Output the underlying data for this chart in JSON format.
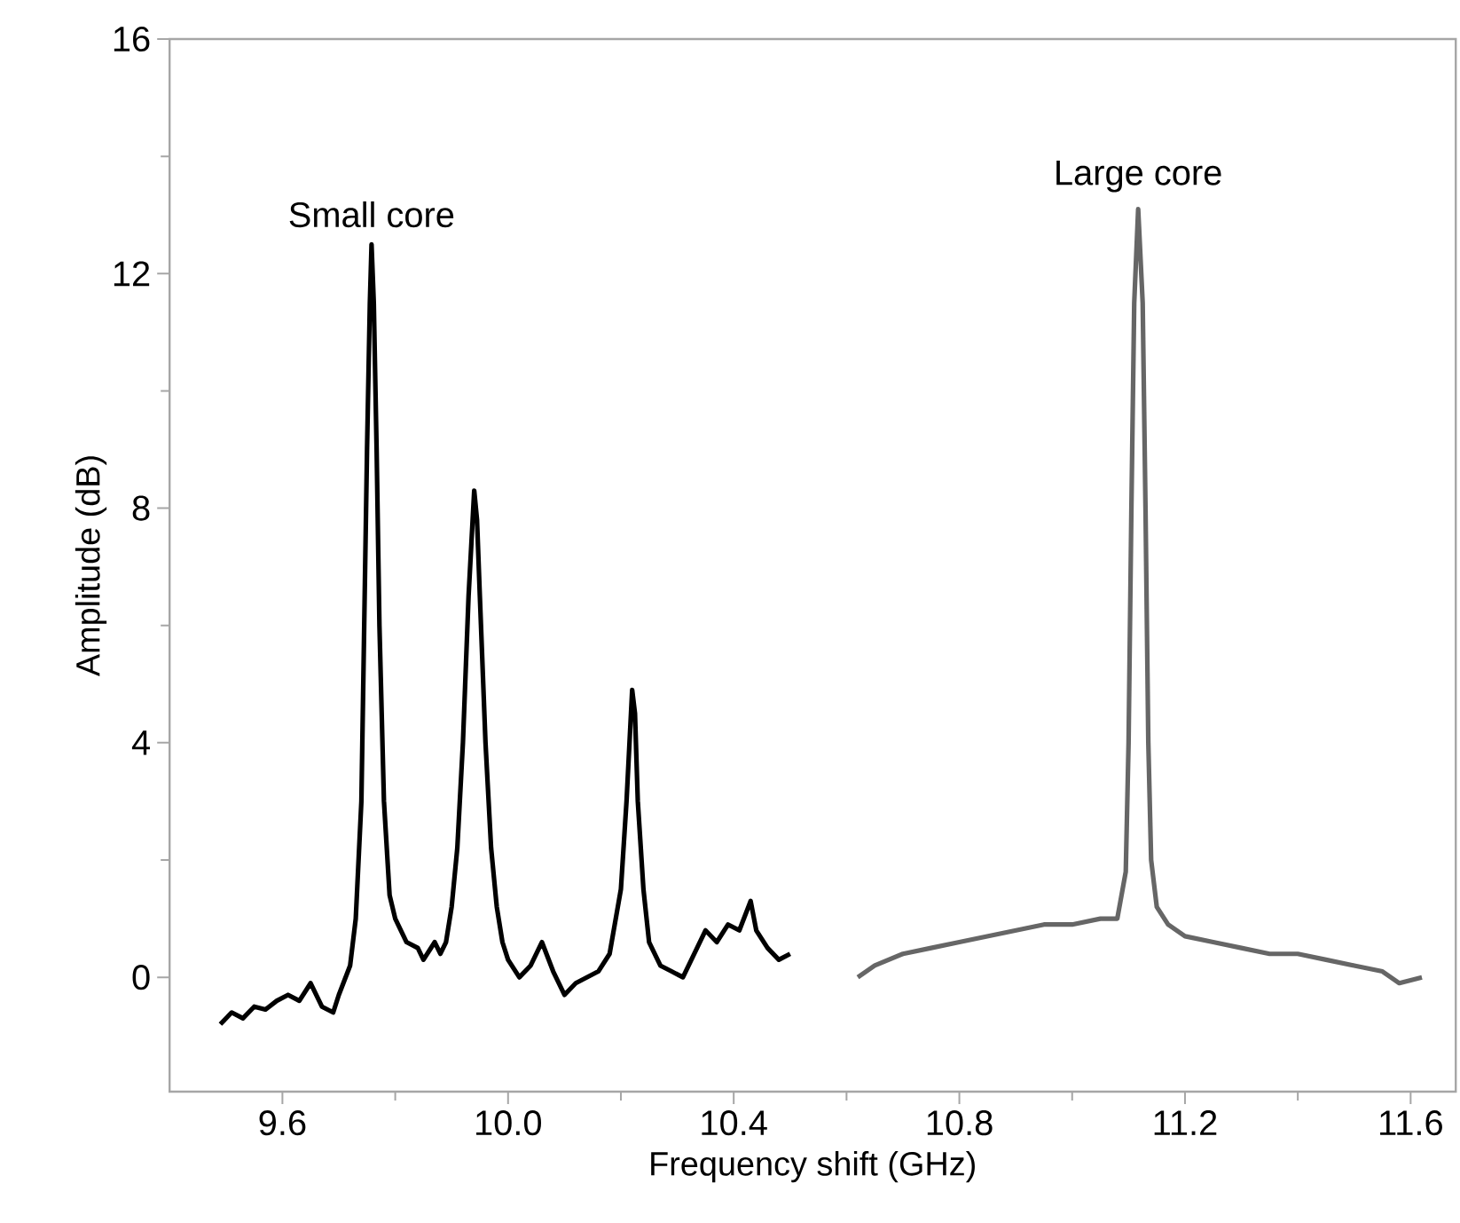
{
  "chart_data": {
    "type": "line",
    "xlabel": "Frequency shift (GHz)",
    "ylabel": "Amplitude (dB)",
    "xlim": [
      9.4,
      11.68
    ],
    "ylim": [
      -1.95,
      16
    ],
    "xticks": [
      9.6,
      {
        "value": 9.8,
        "label": null
      },
      "10.0",
      {
        "value": 10.2,
        "label": null
      },
      10.4,
      {
        "value": 10.6,
        "label": null
      },
      10.8,
      {
        "value": 11.0,
        "label": null
      },
      11.2,
      {
        "value": 11.4,
        "label": null
      },
      11.6
    ],
    "yticks": [
      0,
      {
        "value": 2,
        "label": null
      },
      4,
      {
        "value": 6,
        "label": null
      },
      8,
      {
        "value": 10,
        "label": null
      },
      12,
      {
        "value": 14,
        "label": null
      },
      16
    ],
    "line_style": "solid",
    "series": [
      {
        "color": "#000000",
        "x": [
          9.49,
          9.51,
          9.53,
          9.55,
          9.57,
          9.59,
          9.61,
          9.63,
          9.65,
          9.67,
          9.69,
          9.7,
          9.72,
          9.73,
          9.74,
          9.745,
          9.75,
          9.755,
          9.758,
          9.762,
          9.767,
          9.772,
          9.78,
          9.79,
          9.8,
          9.82,
          9.84,
          9.85,
          9.87,
          9.88,
          9.89,
          9.9,
          9.91,
          9.92,
          9.93,
          9.94,
          9.945,
          9.95,
          9.96,
          9.97,
          9.98,
          9.99,
          10.0,
          10.02,
          10.04,
          10.06,
          10.08,
          10.1,
          10.12,
          10.14,
          10.16,
          10.18,
          10.2,
          10.21,
          10.22,
          10.225,
          10.23,
          10.24,
          10.25,
          10.27,
          10.29,
          10.31,
          10.33,
          10.35,
          10.37,
          10.39,
          10.41,
          10.43,
          10.44,
          10.46,
          10.48,
          10.5
        ],
        "values": [
          -0.8,
          -0.6,
          -0.7,
          -0.5,
          -0.55,
          -0.4,
          -0.3,
          -0.4,
          -0.1,
          -0.5,
          -0.6,
          -0.3,
          0.2,
          1.0,
          3.0,
          6.0,
          9.0,
          11.5,
          12.5,
          11.5,
          9.0,
          6.0,
          3.0,
          1.4,
          1.0,
          0.6,
          0.5,
          0.3,
          0.6,
          0.4,
          0.6,
          1.2,
          2.2,
          4.0,
          6.5,
          8.3,
          7.8,
          6.5,
          4.0,
          2.2,
          1.2,
          0.6,
          0.3,
          0.0,
          0.2,
          0.6,
          0.1,
          -0.3,
          -0.1,
          0.0,
          0.1,
          0.4,
          1.5,
          3.0,
          4.9,
          4.5,
          3.0,
          1.5,
          0.6,
          0.2,
          0.1,
          0.0,
          0.4,
          0.8,
          0.6,
          0.9,
          0.8,
          1.3,
          0.8,
          0.5,
          0.3,
          0.4
        ]
      },
      {
        "color": "#666666",
        "x": [
          10.62,
          10.65,
          10.7,
          10.75,
          10.8,
          10.85,
          10.9,
          10.95,
          11.0,
          11.05,
          11.08,
          11.095,
          11.1,
          11.105,
          11.11,
          11.117,
          11.125,
          11.13,
          11.135,
          11.14,
          11.15,
          11.17,
          11.2,
          11.25,
          11.3,
          11.35,
          11.4,
          11.45,
          11.5,
          11.55,
          11.58,
          11.62
        ],
        "values": [
          0.0,
          0.2,
          0.4,
          0.5,
          0.6,
          0.7,
          0.8,
          0.9,
          0.9,
          1.0,
          1.0,
          1.8,
          4.0,
          8.0,
          11.5,
          13.1,
          11.5,
          8.0,
          4.0,
          2.0,
          1.2,
          0.9,
          0.7,
          0.6,
          0.5,
          0.4,
          0.4,
          0.3,
          0.2,
          0.1,
          -0.1,
          0.0
        ]
      }
    ],
    "annotations": [
      "Small core",
      "Large core"
    ]
  }
}
